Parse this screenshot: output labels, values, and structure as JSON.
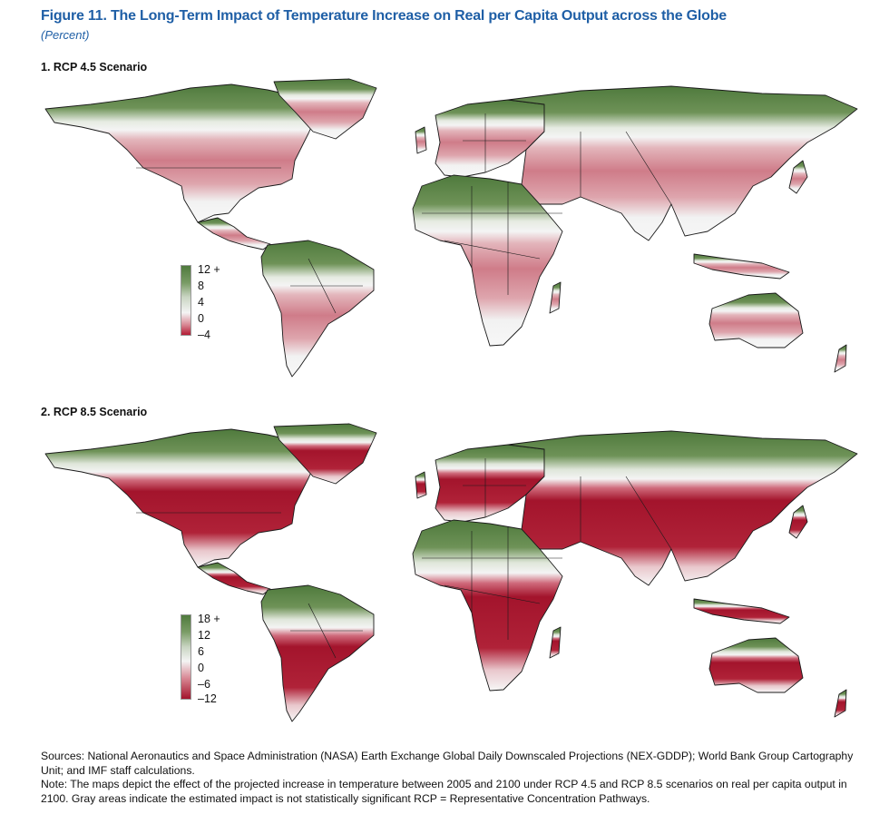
{
  "figure": {
    "title": "Figure 11.  The Long-Term Impact of Temperature Increase on Real per Capita Output across the Globe",
    "subtitle": "(Percent)"
  },
  "panels": [
    {
      "title": "1. RCP 4.5 Scenario",
      "legend": {
        "ticks": [
          "12 +",
          "8",
          "4",
          "0",
          "–4"
        ],
        "colors": {
          "high": "#4f7a3d",
          "mid": "#f2f2f2",
          "low": "#b31b34"
        }
      }
    },
    {
      "title": "2. RCP 8.5 Scenario",
      "legend": {
        "ticks": [
          "18 +",
          "12",
          "6",
          "0",
          "–6",
          "–12"
        ],
        "colors": {
          "high": "#4f7a3d",
          "mid": "#f2f2f2",
          "low": "#a3142c"
        }
      }
    }
  ],
  "footer": {
    "sources": "Sources: National Aeronautics and Space Administration (NASA) Earth Exchange Global Daily Downscaled Projections (NEX-GDDP); World Bank Group Cartography Unit; and IMF staff calculations.",
    "note": "Note: The maps depict the effect of the projected increase in temperature between 2005 and 2100 under RCP 4.5 and RCP 8.5 scenarios on real per capita output in 2100. Gray areas indicate the estimated impact is not statistically significant RCP = Representative Concentration Pathways."
  }
}
